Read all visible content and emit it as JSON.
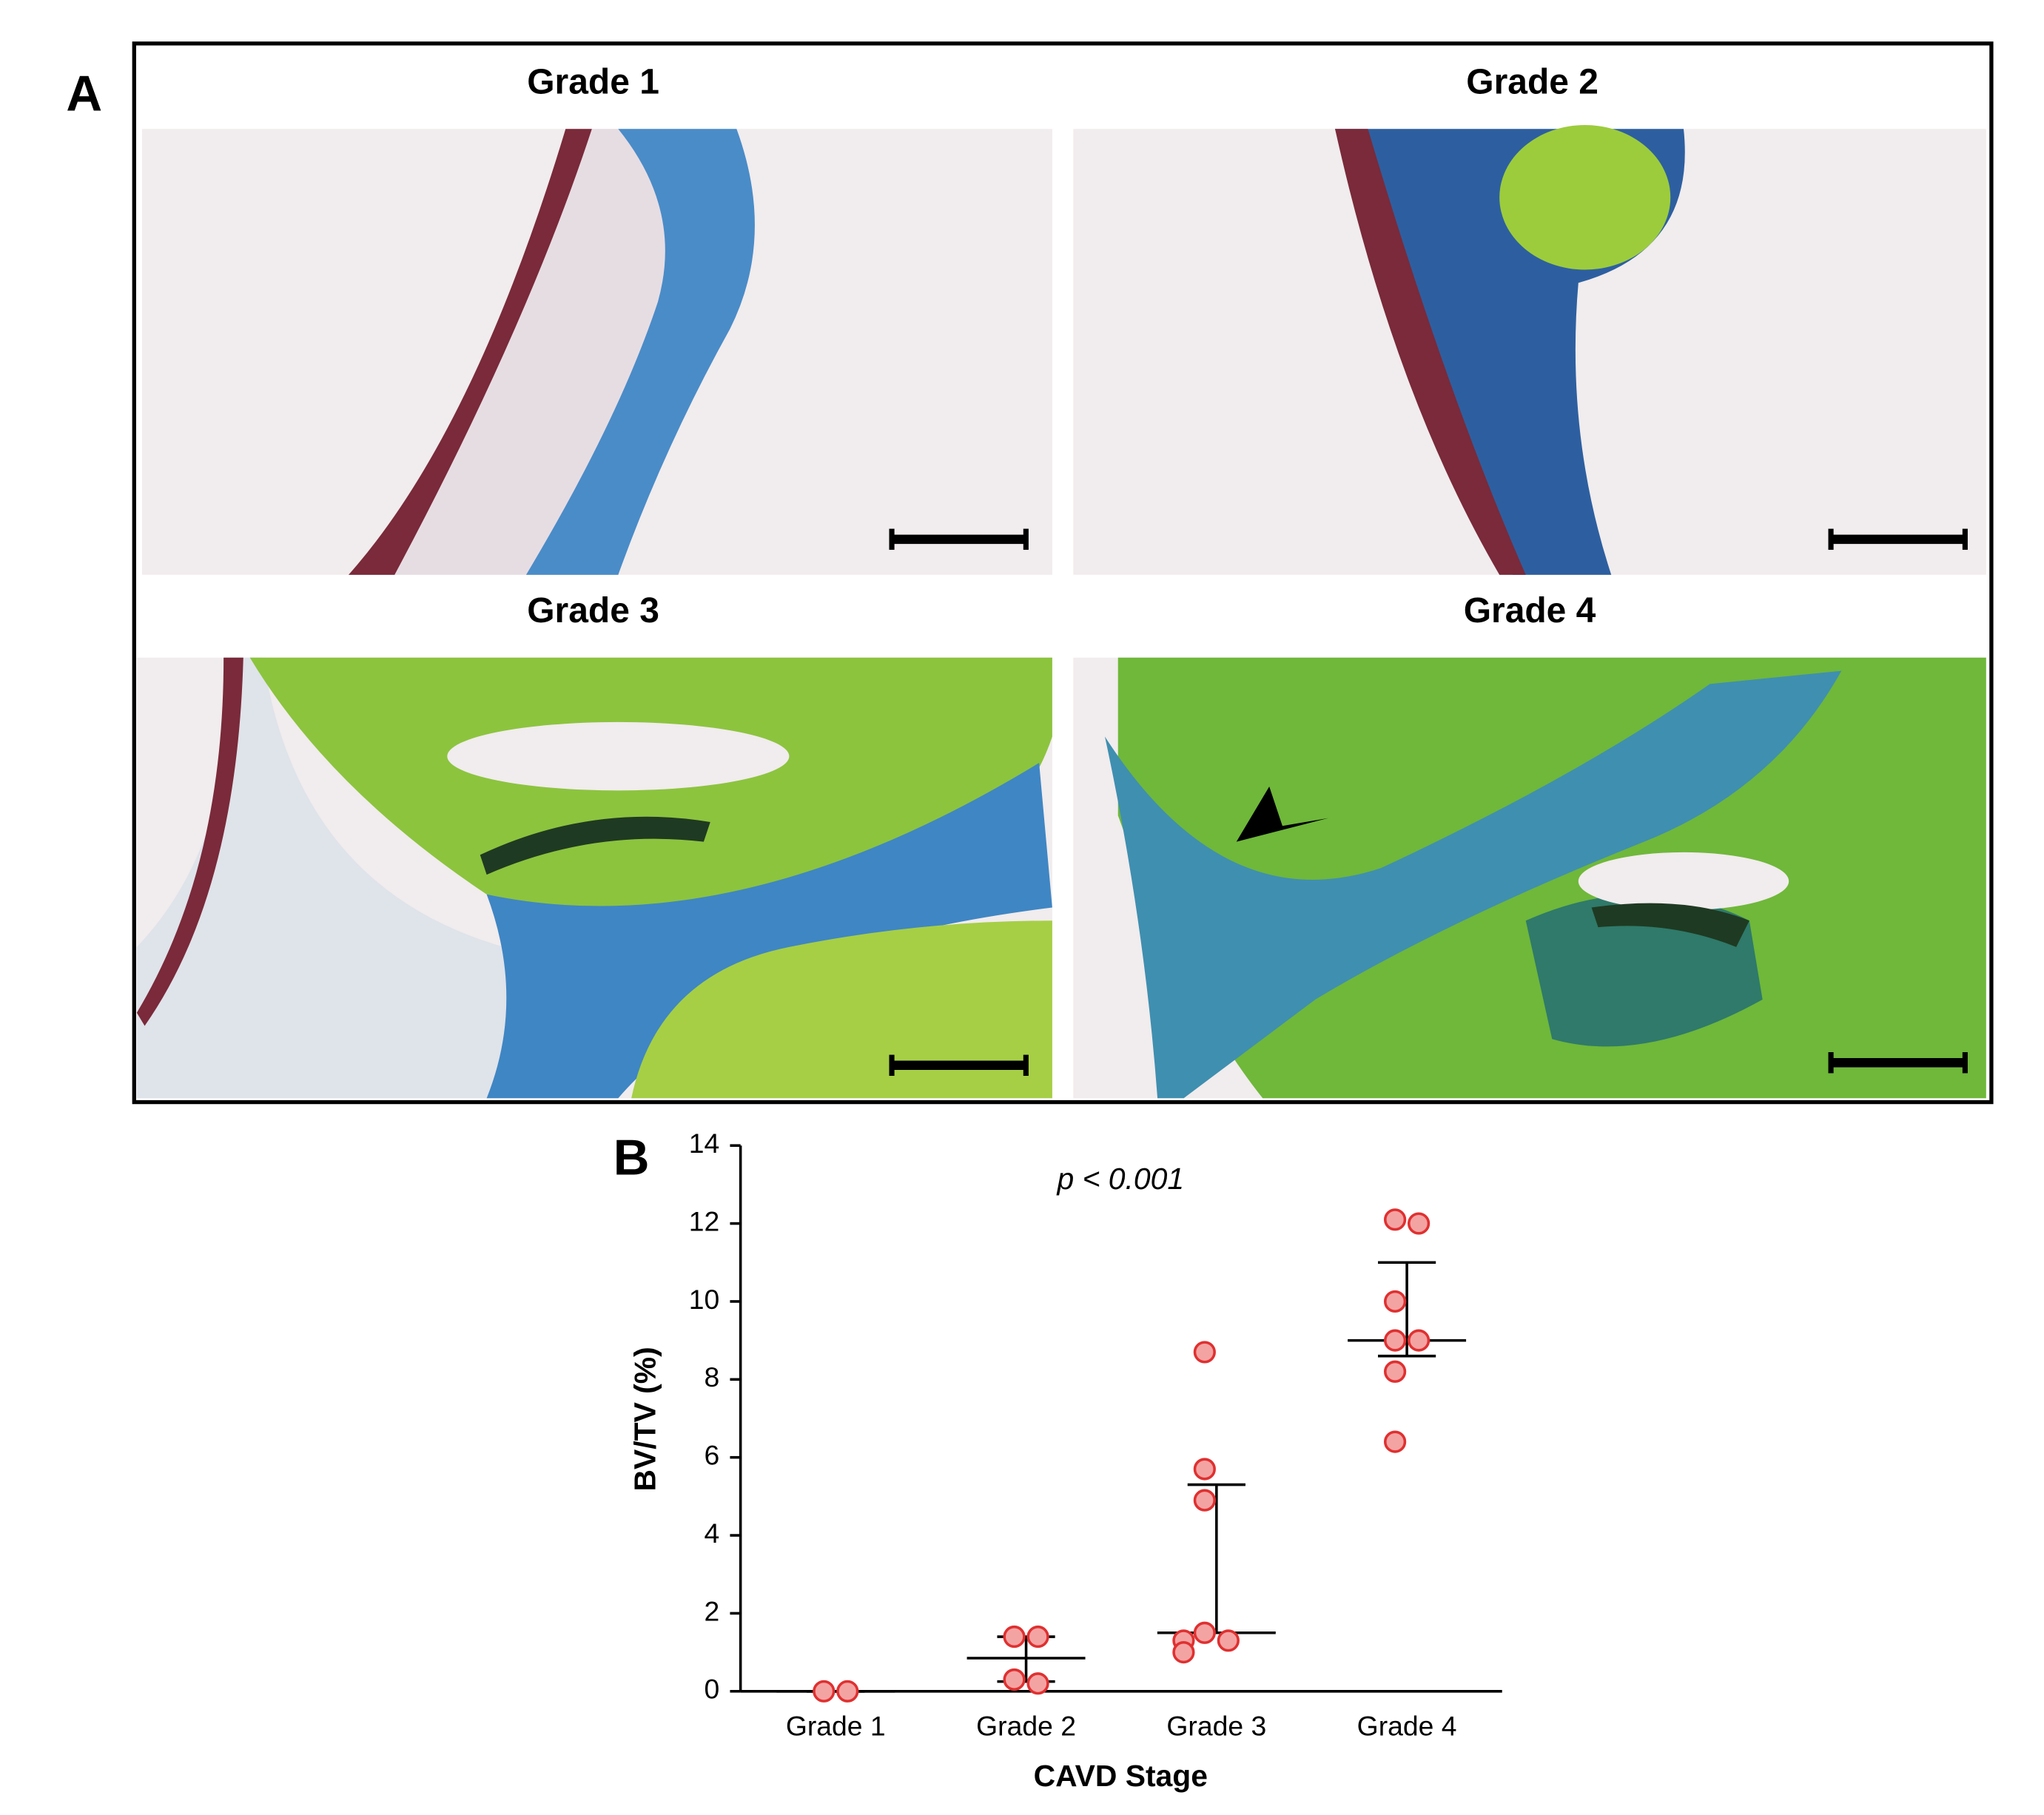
{
  "panel_a": {
    "label": "A",
    "titles": [
      "Grade 1",
      "Grade 2",
      "Grade 3",
      "Grade 4"
    ]
  },
  "chart_data": {
    "type": "dotplot",
    "panel_label": "B",
    "annotation": "p < 0.001",
    "x_label": "CAVD Stage",
    "y_label": "BV/TV (%)",
    "categories": [
      "Grade 1",
      "Grade 2",
      "Grade 3",
      "Grade 4"
    ],
    "points": [
      [
        0,
        0
      ],
      [
        1.4,
        1.4,
        0.3,
        0.2
      ],
      [
        8.7,
        5.7,
        4.9,
        1.5,
        1.3,
        1.3,
        1.0
      ],
      [
        12.1,
        12.0,
        10.0,
        9.0,
        9.0,
        8.2,
        6.4
      ]
    ],
    "medians": [
      0,
      0.85,
      1.5,
      9.0
    ],
    "lower": [
      0,
      0.25,
      1.5,
      8.6
    ],
    "upper": [
      0,
      1.4,
      5.3,
      11.0
    ],
    "color": "#e03030",
    "fill": "#f4a3a3",
    "ylim": [
      0,
      14
    ],
    "yticks": [
      0,
      2,
      4,
      6,
      8,
      10,
      12,
      14
    ]
  }
}
